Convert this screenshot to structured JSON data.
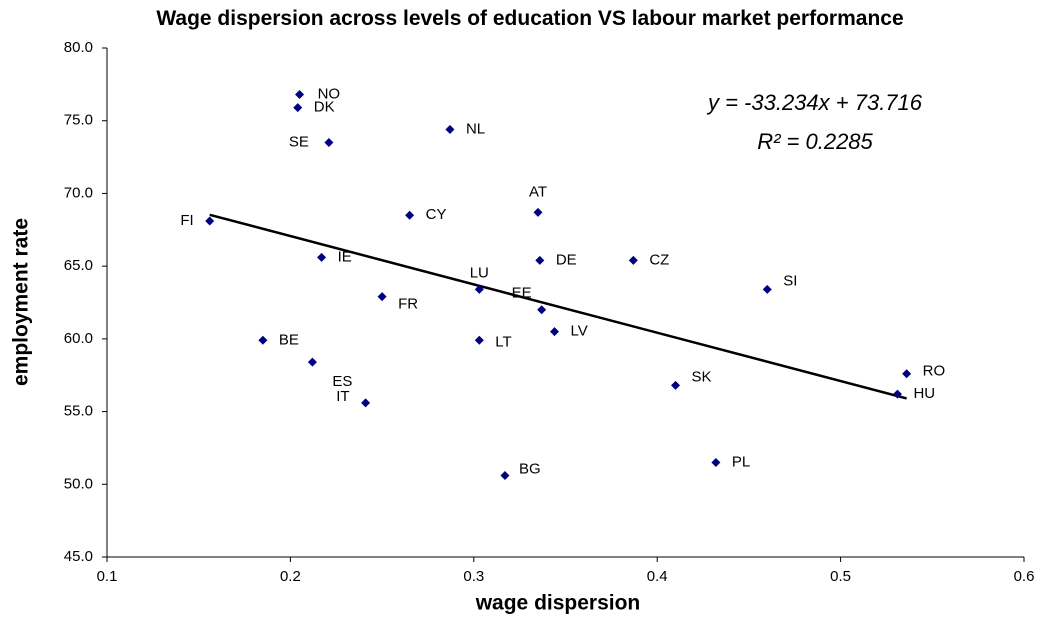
{
  "chart_data": {
    "type": "scatter",
    "title": "Wage dispersion across levels of education VS labour market performance",
    "x_label": "wage dispersion",
    "y_label": "employment rate",
    "point_labels": [
      "NO",
      "DK",
      "SE",
      "NL",
      "CY",
      "AT",
      "FI",
      "IE",
      "DE",
      "CZ",
      "SI",
      "LU",
      "FR",
      "EE",
      "LV",
      "LT",
      "BE",
      "ES",
      "IT",
      "SK",
      "RO",
      "HU",
      "PL",
      "BG"
    ],
    "x": [
      0.205,
      0.204,
      0.221,
      0.287,
      0.265,
      0.335,
      0.156,
      0.217,
      0.336,
      0.387,
      0.46,
      0.303,
      0.25,
      0.337,
      0.344,
      0.303,
      0.185,
      0.212,
      0.241,
      0.41,
      0.536,
      0.531,
      0.432,
      0.317
    ],
    "values": [
      76.8,
      75.9,
      73.5,
      74.4,
      68.5,
      68.7,
      68.1,
      65.6,
      65.4,
      65.4,
      63.4,
      63.4,
      62.9,
      62.0,
      60.5,
      59.9,
      59.9,
      58.4,
      55.6,
      56.8,
      57.6,
      56.2,
      51.5,
      50.6
    ],
    "color": "#000080",
    "trendline": {
      "slope": -33.234,
      "intercept": 73.716,
      "equation": "y = -33.234x + 73.716",
      "r2_label": "R² = 0.2285",
      "color": "#000000"
    },
    "xlim": [
      0.1,
      0.6
    ],
    "xticks": [
      0.1,
      0.2,
      0.3,
      0.4,
      0.5,
      0.6
    ],
    "ylim": [
      45,
      80
    ],
    "yticks": [
      {
        "value": 45,
        "label": "45.0"
      },
      {
        "value": 50,
        "label": "50.0"
      },
      {
        "value": 55,
        "label": "55.0"
      },
      {
        "value": 60,
        "label": "60.0"
      },
      {
        "value": 65,
        "label": "65.0"
      },
      {
        "value": 70,
        "label": "70.0"
      },
      {
        "value": 75,
        "label": "75.0"
      },
      {
        "value": 80,
        "label": "80.0"
      }
    ],
    "grid": false
  }
}
